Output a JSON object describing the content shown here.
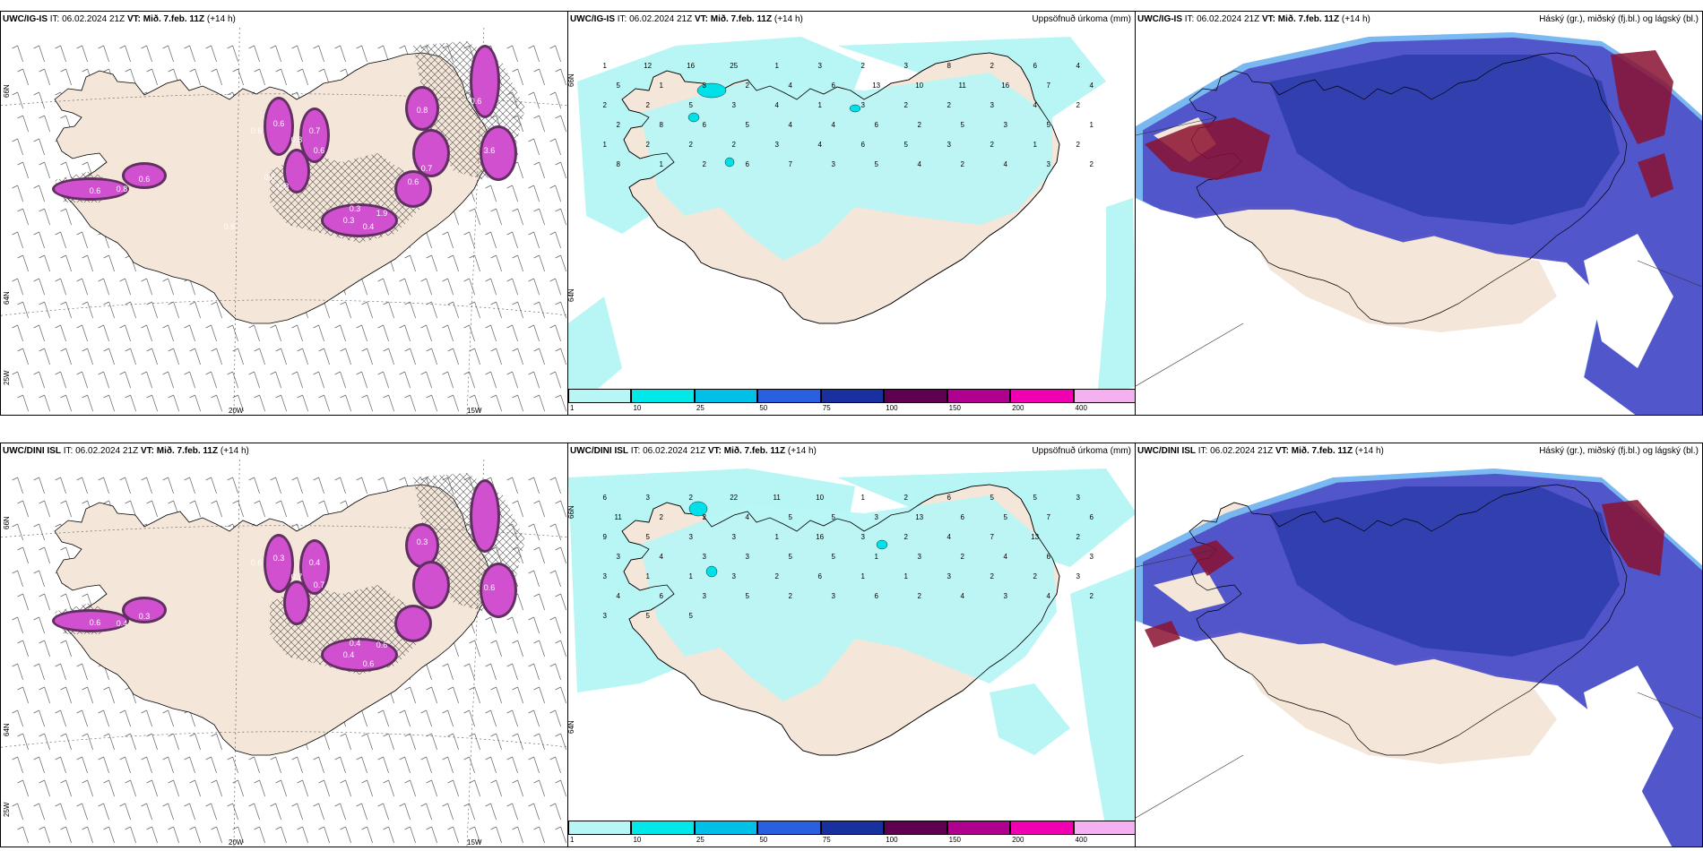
{
  "rows": [
    {
      "model": "UWC/IG-IS",
      "it_prefix": "IT:",
      "it_value": "06.02.2024 21Z",
      "vt_prefix": "VT:",
      "vt_value": "Mið. 7.feb. 11Z",
      "lead": "(+14 h)"
    },
    {
      "model": "UWC/DINI ISL",
      "it_prefix": "IT:",
      "it_value": "06.02.2024 21Z",
      "vt_prefix": "VT:",
      "vt_value": "Mið. 7.feb. 11Z",
      "lead": "(+14 h)"
    }
  ],
  "precip_title": "Uppsöfnuð úrkoma (mm)",
  "cloud_title": "Háský (gr.), miðský (fj.bl.) og lágský (bl.)",
  "left_axes": {
    "lat_66": "66N",
    "lat_64": "64N",
    "lon_25": "25W",
    "lon_20": "20W",
    "lon_15": "15W"
  },
  "precip_axes": {
    "lat_66": "66N",
    "lat_64": "64N"
  },
  "colorbar": {
    "labels": [
      "1",
      "10",
      "25",
      "50",
      "75",
      "100",
      "150",
      "200",
      "400"
    ],
    "colors": [
      "#b8f5f5",
      "#00e8e8",
      "#00c0e8",
      "#2860e0",
      "#1830a0",
      "#600050",
      "#b00090",
      "#f000b0",
      "#f4b0f0"
    ]
  },
  "colors": {
    "land": "#f4e6d8",
    "precip_light": "#b8f5f5",
    "precip_mid": "#00e0e8",
    "snow_purple": "#d050d0",
    "snow_dark": "#603060",
    "cloud_low": "#5050c8",
    "cloud_mid": "#2a3aa8",
    "cloud_high": "#8a1030",
    "cloud_edge": "#6ab0f0"
  },
  "left_top_labels": [
    "0.6",
    "0.8",
    "0.6",
    "0.6",
    "0.6",
    "0.8",
    "0.7",
    "0.6",
    "3.6",
    "0.8",
    "0.3",
    "0.4",
    "1.9",
    "0.3",
    "0.6",
    "0.6",
    "0.8",
    "0.6",
    "0.7",
    "0.6"
  ],
  "left_bottom_labels": [
    "0.6",
    "0.4",
    "0.3",
    "0.6",
    "0.3",
    "0.7",
    "0.4",
    "0.7",
    "0.6",
    "0.3",
    "0.4",
    "0.6",
    "0.6",
    "0.4"
  ],
  "precip_top_numbers": [
    "1",
    "12",
    "16",
    "25",
    "1",
    "3",
    "2",
    "3",
    "8",
    "2",
    "6",
    "4",
    "5",
    "1",
    "3",
    "2",
    "4",
    "6",
    "13",
    "10",
    "11",
    "16",
    "7",
    "4",
    "2",
    "2",
    "5",
    "3",
    "4",
    "1",
    "3",
    "2",
    "2",
    "3",
    "4",
    "2",
    "2",
    "8",
    "6",
    "5",
    "4",
    "4",
    "6",
    "2",
    "5",
    "3",
    "5",
    "1",
    "1",
    "2",
    "2",
    "2",
    "3",
    "4",
    "6",
    "5",
    "3",
    "2",
    "1",
    "2",
    "8",
    "1",
    "2",
    "6",
    "7",
    "3",
    "5",
    "4",
    "2",
    "4",
    "3",
    "2"
  ],
  "precip_bottom_numbers": [
    "6",
    "3",
    "2",
    "22",
    "11",
    "10",
    "1",
    "2",
    "6",
    "5",
    "5",
    "3",
    "11",
    "2",
    "2",
    "4",
    "5",
    "5",
    "3",
    "13",
    "6",
    "5",
    "7",
    "6",
    "9",
    "5",
    "3",
    "3",
    "1",
    "16",
    "3",
    "2",
    "4",
    "7",
    "13",
    "2",
    "3",
    "4",
    "3",
    "3",
    "5",
    "5",
    "1",
    "3",
    "2",
    "4",
    "6",
    "3",
    "3",
    "1",
    "1",
    "3",
    "2",
    "6",
    "1",
    "1",
    "3",
    "2",
    "2",
    "3",
    "4",
    "6",
    "3",
    "5",
    "2",
    "3",
    "6",
    "2",
    "4",
    "3",
    "4",
    "2",
    "3",
    "5",
    "5"
  ]
}
